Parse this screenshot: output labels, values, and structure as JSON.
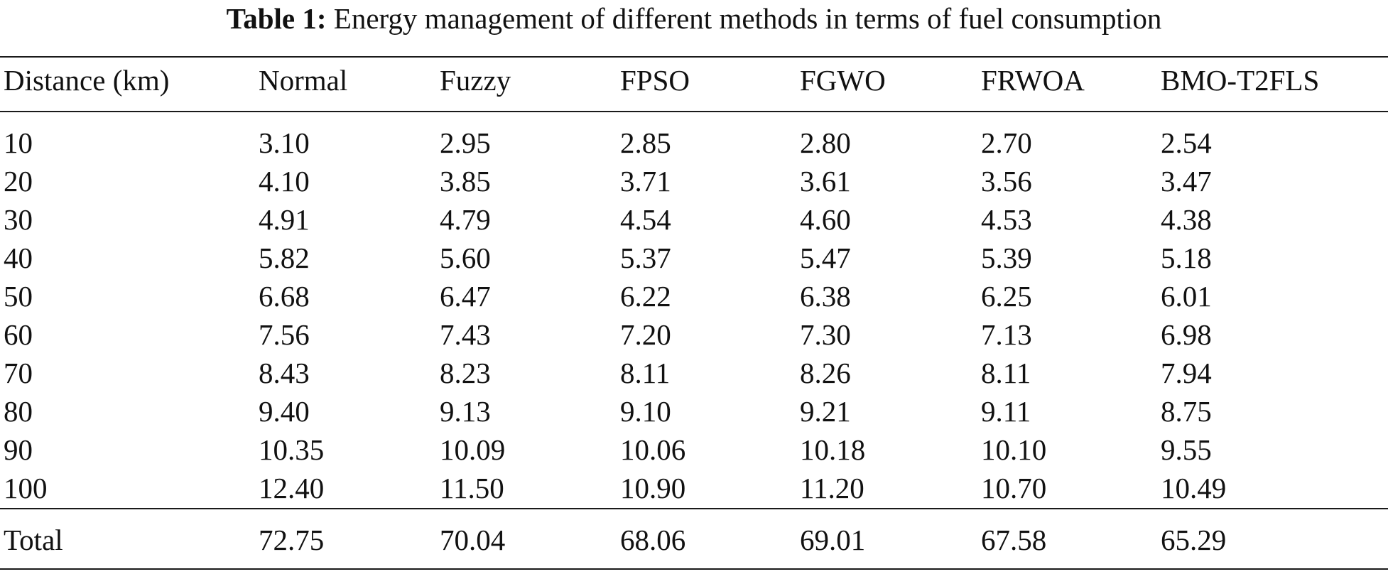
{
  "caption": {
    "label": "Table 1:",
    "text": "Energy management of different methods in terms of fuel consumption"
  },
  "table": {
    "headers": [
      "Distance (km)",
      "Normal",
      "Fuzzy",
      "FPSO",
      "FGWO",
      "FRWOA",
      "BMO-T2FLS"
    ],
    "rows": [
      [
        "10",
        "3.10",
        "2.95",
        "2.85",
        "2.80",
        "2.70",
        "2.54"
      ],
      [
        "20",
        "4.10",
        "3.85",
        "3.71",
        "3.61",
        "3.56",
        "3.47"
      ],
      [
        "30",
        "4.91",
        "4.79",
        "4.54",
        "4.60",
        "4.53",
        "4.38"
      ],
      [
        "40",
        "5.82",
        "5.60",
        "5.37",
        "5.47",
        "5.39",
        "5.18"
      ],
      [
        "50",
        "6.68",
        "6.47",
        "6.22",
        "6.38",
        "6.25",
        "6.01"
      ],
      [
        "60",
        "7.56",
        "7.43",
        "7.20",
        "7.30",
        "7.13",
        "6.98"
      ],
      [
        "70",
        "8.43",
        "8.23",
        "8.11",
        "8.26",
        "8.11",
        "7.94"
      ],
      [
        "80",
        "9.40",
        "9.13",
        "9.10",
        "9.21",
        "9.11",
        "8.75"
      ],
      [
        "90",
        "10.35",
        "10.09",
        "10.06",
        "10.18",
        "10.10",
        "9.55"
      ],
      [
        "100",
        "12.40",
        "11.50",
        "10.90",
        "11.20",
        "10.70",
        "10.49"
      ]
    ],
    "total": [
      "Total",
      "72.75",
      "70.04",
      "68.06",
      "69.01",
      "67.58",
      "65.29"
    ]
  }
}
